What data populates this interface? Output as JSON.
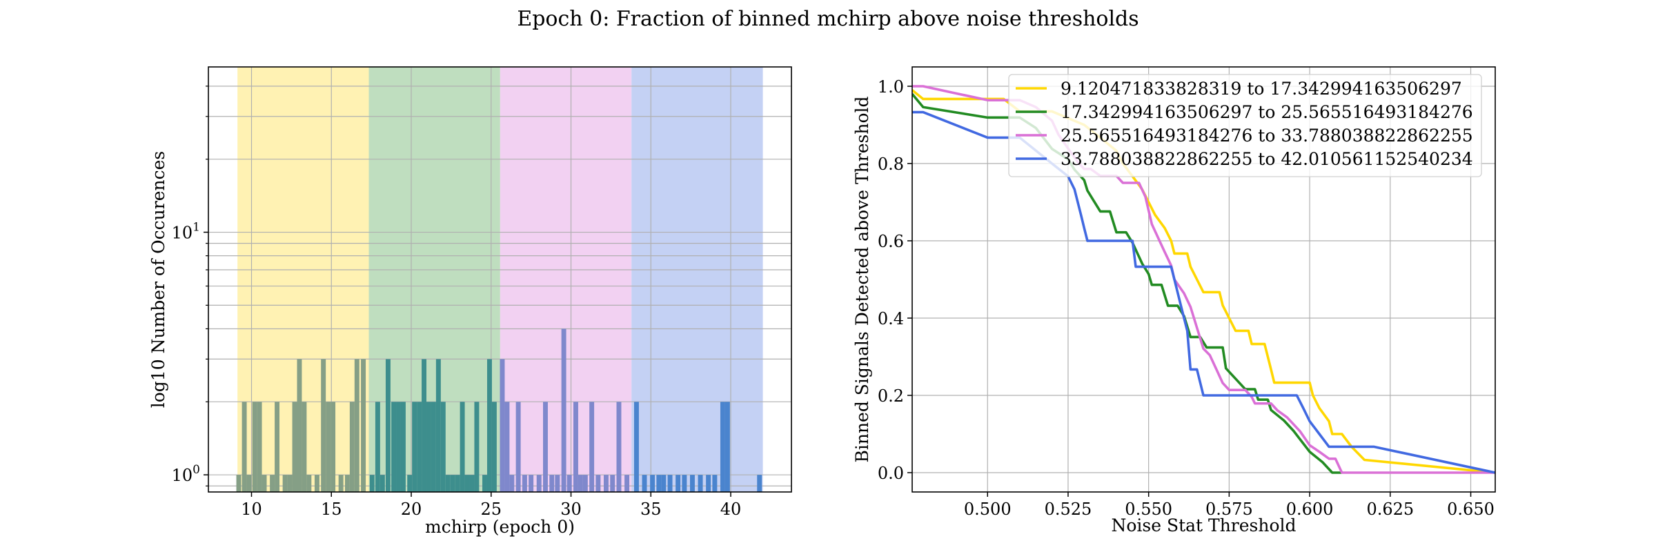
{
  "figure": {
    "title": "Epoch 0: Fraction of binned mchirp above noise thresholds"
  },
  "chart_data": [
    {
      "type": "bar",
      "name": "histogram",
      "xlabel": "mchirp (epoch 0)",
      "ylabel": "log10 Number of Occurences",
      "xlim": [
        7.3,
        43.8
      ],
      "ylim": [
        0.85,
        48
      ],
      "yscale": "log",
      "xticks": [
        10,
        15,
        20,
        25,
        30,
        35,
        40
      ],
      "yticks": [
        {
          "value": 1,
          "base": "10",
          "exp": "0"
        },
        {
          "value": 10,
          "base": "10",
          "exp": "1"
        }
      ],
      "grid": true,
      "bins": [
        {
          "x0": 9.120471833828319,
          "x1": 17.342994163506297,
          "color": "#FFF2B3"
        },
        {
          "x0": 17.342994163506297,
          "x1": 25.565516493184276,
          "color": "#BFDEBF"
        },
        {
          "x0": 25.565516493184276,
          "x1": 33.788038822862255,
          "color": "#F2D1F2"
        },
        {
          "x0": 33.788038822862255,
          "x1": 42.010561152540234,
          "color": "#C4D1F4"
        }
      ],
      "bar_width": 0.3,
      "bars": [
        [
          9.2,
          1
        ],
        [
          9.55,
          2
        ],
        [
          9.85,
          1
        ],
        [
          10.2,
          2
        ],
        [
          10.5,
          2
        ],
        [
          10.8,
          1
        ],
        [
          11.3,
          1
        ],
        [
          11.6,
          2
        ],
        [
          12.1,
          1
        ],
        [
          12.4,
          1
        ],
        [
          12.7,
          2
        ],
        [
          13.0,
          3
        ],
        [
          13.3,
          2
        ],
        [
          13.6,
          1
        ],
        [
          14.1,
          1
        ],
        [
          14.5,
          3
        ],
        [
          14.8,
          2
        ],
        [
          15.1,
          2
        ],
        [
          15.6,
          1
        ],
        [
          16.0,
          1
        ],
        [
          16.3,
          2
        ],
        [
          16.6,
          3
        ],
        [
          17.0,
          3
        ],
        [
          17.55,
          1
        ],
        [
          17.9,
          2
        ],
        [
          18.2,
          1
        ],
        [
          18.55,
          3
        ],
        [
          18.9,
          2
        ],
        [
          19.2,
          2
        ],
        [
          19.5,
          2
        ],
        [
          19.9,
          1
        ],
        [
          20.2,
          2
        ],
        [
          20.5,
          2
        ],
        [
          20.8,
          3
        ],
        [
          21.1,
          2
        ],
        [
          21.4,
          2
        ],
        [
          21.7,
          3
        ],
        [
          22.0,
          2
        ],
        [
          22.3,
          1
        ],
        [
          22.6,
          1
        ],
        [
          22.9,
          1
        ],
        [
          23.2,
          2
        ],
        [
          23.5,
          1
        ],
        [
          23.8,
          1
        ],
        [
          24.1,
          2
        ],
        [
          24.6,
          1
        ],
        [
          24.9,
          3
        ],
        [
          25.2,
          2
        ],
        [
          25.7,
          3
        ],
        [
          26.0,
          2
        ],
        [
          26.3,
          1
        ],
        [
          26.7,
          2
        ],
        [
          27.1,
          1
        ],
        [
          27.5,
          1
        ],
        [
          28.0,
          1
        ],
        [
          28.4,
          2
        ],
        [
          28.8,
          1
        ],
        [
          29.15,
          1
        ],
        [
          29.55,
          4
        ],
        [
          29.9,
          1
        ],
        [
          30.3,
          2
        ],
        [
          30.6,
          1
        ],
        [
          30.9,
          1
        ],
        [
          31.3,
          2
        ],
        [
          31.7,
          1
        ],
        [
          32.2,
          1
        ],
        [
          32.6,
          1
        ],
        [
          33.0,
          2
        ],
        [
          33.5,
          1
        ],
        [
          34.1,
          2
        ],
        [
          34.6,
          1
        ],
        [
          35.1,
          1
        ],
        [
          35.5,
          1
        ],
        [
          35.8,
          1
        ],
        [
          36.2,
          1
        ],
        [
          36.7,
          1
        ],
        [
          37.1,
          1
        ],
        [
          37.6,
          1
        ],
        [
          38.1,
          1
        ],
        [
          38.6,
          1
        ],
        [
          39.0,
          1
        ],
        [
          39.5,
          2
        ],
        [
          39.8,
          2
        ],
        [
          41.8,
          1
        ]
      ]
    },
    {
      "type": "line",
      "name": "threshold",
      "xlabel": "Noise Stat Threshold",
      "ylabel": "Binned Signals Detected above Threshold",
      "xlim": [
        0.4766,
        0.6576
      ],
      "ylim": [
        -0.05,
        1.05
      ],
      "xticks": [
        0.5,
        0.525,
        0.55,
        0.575,
        0.6,
        0.625,
        0.65
      ],
      "xtick_labels": [
        "0.500",
        "0.525",
        "0.550",
        "0.575",
        "0.600",
        "0.625",
        "0.650"
      ],
      "yticks": [
        0.0,
        0.2,
        0.4,
        0.6,
        0.8,
        1.0
      ],
      "ytick_labels": [
        "0.0",
        "0.2",
        "0.4",
        "0.6",
        "0.8",
        "1.0"
      ],
      "grid": true,
      "legend": "top-right",
      "series": [
        {
          "name": "9.120471833828319 to 17.342994163506297",
          "color": "#FFD700",
          "points": [
            [
              0.4766,
              0.99
            ],
            [
              0.48,
              0.967
            ],
            [
              0.5,
              0.967
            ],
            [
              0.505,
              0.967
            ],
            [
              0.51,
              0.935
            ],
            [
              0.52,
              0.935
            ],
            [
              0.53,
              0.9
            ],
            [
              0.535,
              0.867
            ],
            [
              0.54,
              0.833
            ],
            [
              0.542,
              0.8
            ],
            [
              0.545,
              0.767
            ],
            [
              0.548,
              0.733
            ],
            [
              0.55,
              0.7
            ],
            [
              0.552,
              0.667
            ],
            [
              0.555,
              0.633
            ],
            [
              0.557,
              0.6
            ],
            [
              0.558,
              0.567
            ],
            [
              0.562,
              0.567
            ],
            [
              0.563,
              0.533
            ],
            [
              0.565,
              0.5
            ],
            [
              0.567,
              0.467
            ],
            [
              0.572,
              0.467
            ],
            [
              0.573,
              0.433
            ],
            [
              0.575,
              0.4
            ],
            [
              0.577,
              0.367
            ],
            [
              0.581,
              0.367
            ],
            [
              0.582,
              0.333
            ],
            [
              0.586,
              0.333
            ],
            [
              0.587,
              0.3
            ],
            [
              0.588,
              0.267
            ],
            [
              0.589,
              0.233
            ],
            [
              0.6,
              0.233
            ],
            [
              0.601,
              0.2
            ],
            [
              0.603,
              0.167
            ],
            [
              0.606,
              0.133
            ],
            [
              0.607,
              0.1
            ],
            [
              0.61,
              0.1
            ],
            [
              0.613,
              0.067
            ],
            [
              0.617,
              0.033
            ],
            [
              0.6576,
              0.0
            ]
          ]
        },
        {
          "name": "17.342994163506297 to 25.565516493184276",
          "color": "#228B22",
          "points": [
            [
              0.4766,
              0.98
            ],
            [
              0.48,
              0.946
            ],
            [
              0.5,
              0.919
            ],
            [
              0.51,
              0.919
            ],
            [
              0.515,
              0.892
            ],
            [
              0.52,
              0.838
            ],
            [
              0.525,
              0.811
            ],
            [
              0.527,
              0.784
            ],
            [
              0.53,
              0.757
            ],
            [
              0.531,
              0.73
            ],
            [
              0.533,
              0.703
            ],
            [
              0.535,
              0.676
            ],
            [
              0.538,
              0.676
            ],
            [
              0.54,
              0.622
            ],
            [
              0.543,
              0.622
            ],
            [
              0.545,
              0.595
            ],
            [
              0.548,
              0.541
            ],
            [
              0.55,
              0.514
            ],
            [
              0.551,
              0.486
            ],
            [
              0.554,
              0.486
            ],
            [
              0.556,
              0.432
            ],
            [
              0.559,
              0.432
            ],
            [
              0.561,
              0.405
            ],
            [
              0.563,
              0.351
            ],
            [
              0.566,
              0.351
            ],
            [
              0.568,
              0.324
            ],
            [
              0.573,
              0.324
            ],
            [
              0.574,
              0.27
            ],
            [
              0.577,
              0.243
            ],
            [
              0.58,
              0.216
            ],
            [
              0.583,
              0.216
            ],
            [
              0.584,
              0.189
            ],
            [
              0.587,
              0.189
            ],
            [
              0.588,
              0.162
            ],
            [
              0.592,
              0.135
            ],
            [
              0.595,
              0.108
            ],
            [
              0.6,
              0.054
            ],
            [
              0.604,
              0.027
            ],
            [
              0.607,
              0.0
            ],
            [
              0.61,
              0.0
            ]
          ]
        },
        {
          "name": "25.565516493184276 to 33.788038822862255",
          "color": "#DA70D6",
          "points": [
            [
              0.4766,
              1.0
            ],
            [
              0.48,
              1.0
            ],
            [
              0.49,
              0.982
            ],
            [
              0.5,
              0.964
            ],
            [
              0.51,
              0.964
            ],
            [
              0.515,
              0.946
            ],
            [
              0.52,
              0.911
            ],
            [
              0.522,
              0.875
            ],
            [
              0.525,
              0.839
            ],
            [
              0.528,
              0.804
            ],
            [
              0.53,
              0.786
            ],
            [
              0.532,
              0.786
            ],
            [
              0.535,
              0.768
            ],
            [
              0.54,
              0.768
            ],
            [
              0.542,
              0.75
            ],
            [
              0.547,
              0.75
            ],
            [
              0.549,
              0.714
            ],
            [
              0.551,
              0.643
            ],
            [
              0.553,
              0.607
            ],
            [
              0.555,
              0.571
            ],
            [
              0.557,
              0.536
            ],
            [
              0.558,
              0.5
            ],
            [
              0.561,
              0.464
            ],
            [
              0.563,
              0.429
            ],
            [
              0.565,
              0.375
            ],
            [
              0.567,
              0.321
            ],
            [
              0.569,
              0.304
            ],
            [
              0.571,
              0.268
            ],
            [
              0.573,
              0.232
            ],
            [
              0.575,
              0.214
            ],
            [
              0.58,
              0.214
            ],
            [
              0.582,
              0.196
            ],
            [
              0.583,
              0.179
            ],
            [
              0.588,
              0.179
            ],
            [
              0.59,
              0.161
            ],
            [
              0.593,
              0.143
            ],
            [
              0.597,
              0.107
            ],
            [
              0.6,
              0.071
            ],
            [
              0.603,
              0.054
            ],
            [
              0.606,
              0.036
            ],
            [
              0.608,
              0.036
            ],
            [
              0.61,
              0.0
            ],
            [
              0.6576,
              0.0
            ]
          ]
        },
        {
          "name": "33.788038822862255 to 42.010561152540234",
          "color": "#4169E1",
          "points": [
            [
              0.4766,
              0.933
            ],
            [
              0.48,
              0.933
            ],
            [
              0.5,
              0.867
            ],
            [
              0.51,
              0.867
            ],
            [
              0.52,
              0.8
            ],
            [
              0.525,
              0.767
            ],
            [
              0.527,
              0.733
            ],
            [
              0.529,
              0.667
            ],
            [
              0.53,
              0.633
            ],
            [
              0.531,
              0.6
            ],
            [
              0.545,
              0.6
            ],
            [
              0.546,
              0.533
            ],
            [
              0.557,
              0.533
            ],
            [
              0.558,
              0.5
            ],
            [
              0.56,
              0.433
            ],
            [
              0.562,
              0.367
            ],
            [
              0.563,
              0.267
            ],
            [
              0.565,
              0.267
            ],
            [
              0.567,
              0.2
            ],
            [
              0.596,
              0.2
            ],
            [
              0.598,
              0.167
            ],
            [
              0.6,
              0.133
            ],
            [
              0.603,
              0.1
            ],
            [
              0.606,
              0.067
            ],
            [
              0.62,
              0.067
            ],
            [
              0.6576,
              0.0
            ]
          ]
        }
      ]
    }
  ]
}
